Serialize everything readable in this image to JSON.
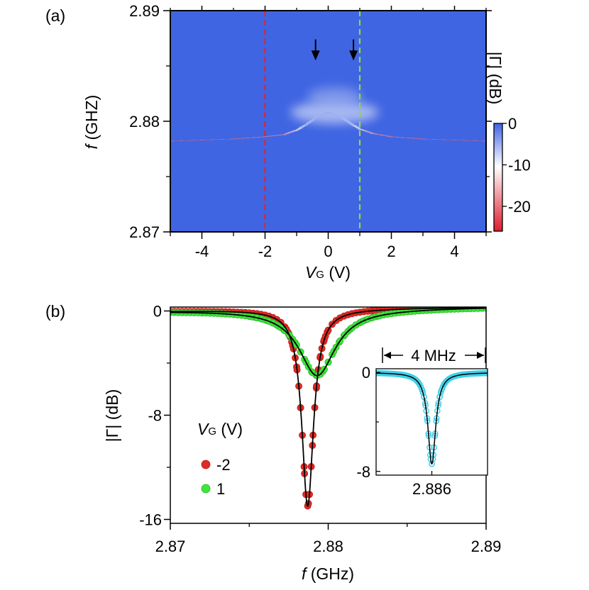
{
  "chart_data": [
    {
      "panel_label": "(a)",
      "type": "heatmap",
      "title": "",
      "xlabel": {
        "symbol": "V",
        "subscript": "G",
        "unit": " (V)"
      },
      "ylabel": {
        "symbol": "f",
        "unit": " (GHZ)"
      },
      "xlim": [
        -5,
        5
      ],
      "ylim": [
        2.87,
        2.89
      ],
      "x_ticks": [
        -4,
        -2,
        0,
        2,
        4
      ],
      "x_tick_labels": [
        "-4",
        "-2",
        "0",
        "2",
        "4"
      ],
      "y_ticks": [
        2.87,
        2.88,
        2.89
      ],
      "y_tick_labels": [
        "2.87",
        "2.88",
        "2.89"
      ],
      "colorbar": {
        "label": "|Γ| (dB)",
        "range": [
          -26,
          0
        ],
        "ticks": [
          0,
          -10,
          -20
        ],
        "tick_labels": [
          "0",
          "-10",
          "-20"
        ],
        "colors": [
          "#3f63e6",
          "#ffffff",
          "#e0192c"
        ]
      },
      "background_color": "#4065e2",
      "resonance": {
        "description": "Minimum of |Γ| vs V_G",
        "vg": [
          -5,
          -4,
          -3,
          -2,
          -1.4,
          -1.0,
          -0.7,
          -0.4,
          0,
          0.4,
          0.7,
          1.0,
          1.4,
          2,
          3,
          4,
          5
        ],
        "f_ghz": [
          2.8782,
          2.8783,
          2.8784,
          2.8786,
          2.8788,
          2.8792,
          2.8797,
          2.8803,
          2.8808,
          2.8804,
          2.8798,
          2.8793,
          2.8789,
          2.8786,
          2.8784,
          2.8783,
          2.8782
        ],
        "depth_db": [
          -25,
          -25,
          -24,
          -23,
          -20,
          -12,
          -7,
          -5,
          -4,
          -5,
          -7,
          -12,
          -20,
          -23,
          -24,
          -25,
          -25
        ]
      },
      "markers": [
        {
          "type": "vline",
          "x": -2,
          "color": "#e0252c",
          "style": "dashed"
        },
        {
          "type": "vline",
          "x": 1,
          "color": "#8fd83a",
          "style": "dashed"
        },
        {
          "type": "arrow",
          "x": -0.4,
          "y_from": 2.8874,
          "y_to": 2.8855,
          "color": "#000000"
        },
        {
          "type": "arrow",
          "x": 0.8,
          "y_from": 2.8874,
          "y_to": 2.8855,
          "color": "#000000"
        }
      ]
    },
    {
      "panel_label": "(b)",
      "type": "scatter",
      "title": "",
      "xlabel": {
        "symbol": "f",
        "unit": " (GHz)"
      },
      "ylabel": "|Γ| (dB)",
      "xlim": [
        2.87,
        2.89
      ],
      "ylim": [
        -16.3,
        0.3
      ],
      "x_ticks": [
        2.87,
        2.88,
        2.89
      ],
      "x_tick_labels": [
        "2.87",
        "2.88",
        "2.89"
      ],
      "y_ticks": [
        0,
        -8,
        -16
      ],
      "y_tick_labels": [
        "0",
        "-8",
        "-16"
      ],
      "legend": {
        "title_symbol": "V",
        "title_subscript": "G",
        "title_unit": " (V)",
        "position": "center-left"
      },
      "series": [
        {
          "name": "-2",
          "color": "#e02a25",
          "f0": 2.8787,
          "depth": -15.1,
          "gamma": 0.00045,
          "baseline": [
            0,
            0.3
          ],
          "fit_color": "#000000"
        },
        {
          "name": "1",
          "color": "#3ee63a",
          "f0": 2.8793,
          "depth": -5.1,
          "gamma": 0.0014,
          "baseline": [
            0,
            0.3
          ],
          "fit_color": "#000000"
        }
      ],
      "inset": {
        "type": "scatter",
        "x_tick_labels": [
          "2.886"
        ],
        "y_tick_labels": [
          "0",
          "-8"
        ],
        "span_label": "4 MHz",
        "series": {
          "name": "inset",
          "color": "#3dd0e8",
          "f0": 2.8861,
          "depth": -7.4,
          "gamma": 0.00017
        },
        "xlim": [
          2.8841,
          2.8881
        ],
        "ylim": [
          -8.3,
          0.3
        ]
      }
    }
  ]
}
